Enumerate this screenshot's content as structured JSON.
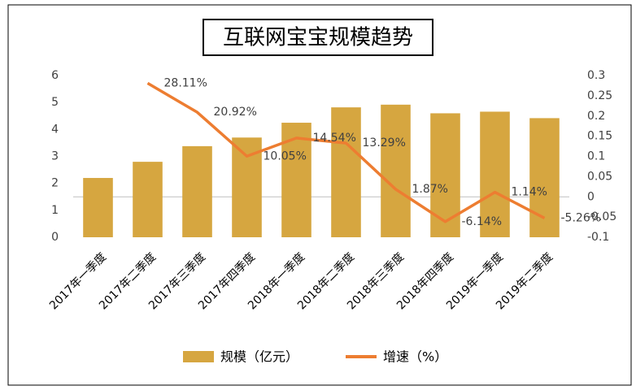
{
  "chart_data": {
    "type": "bar",
    "title": "互联网宝宝规模趋势",
    "categories": [
      "2017年一季度",
      "2017年二季度",
      "2017年三季度",
      "2017年四季度",
      "2018年一季度",
      "2018年二季度",
      "2018年三季度",
      "2018年四季度",
      "2019年一季度",
      "2019年二季度"
    ],
    "series": [
      {
        "name": "规模（亿元）",
        "type": "bar",
        "color": "#d6a640",
        "values": [
          2.2,
          2.8,
          3.38,
          3.7,
          4.25,
          4.82,
          4.92,
          4.6,
          4.66,
          4.42
        ]
      },
      {
        "name": "增速（%）",
        "type": "line",
        "axis": "y2",
        "color": "#ed7d31",
        "values": [
          null,
          0.2811,
          0.2092,
          0.1005,
          0.1454,
          0.1329,
          0.0187,
          -0.0614,
          0.0114,
          -0.0526
        ],
        "value_labels": [
          null,
          "28.11%",
          "20.92%",
          "10.05%",
          "14.54%",
          "13.29%",
          "1.87%",
          "-6.14%",
          "1.14%",
          "-5.26%"
        ]
      }
    ],
    "ylim": [
      0,
      6
    ],
    "yticks": [
      0,
      1,
      2,
      3,
      4,
      5,
      6
    ],
    "y2lim": [
      -0.1,
      0.3
    ],
    "y2ticks": [
      -0.1,
      -0.05,
      0,
      0.05,
      0.1,
      0.15,
      0.2,
      0.25,
      0.3
    ],
    "grid": false,
    "legend": "bottom"
  }
}
